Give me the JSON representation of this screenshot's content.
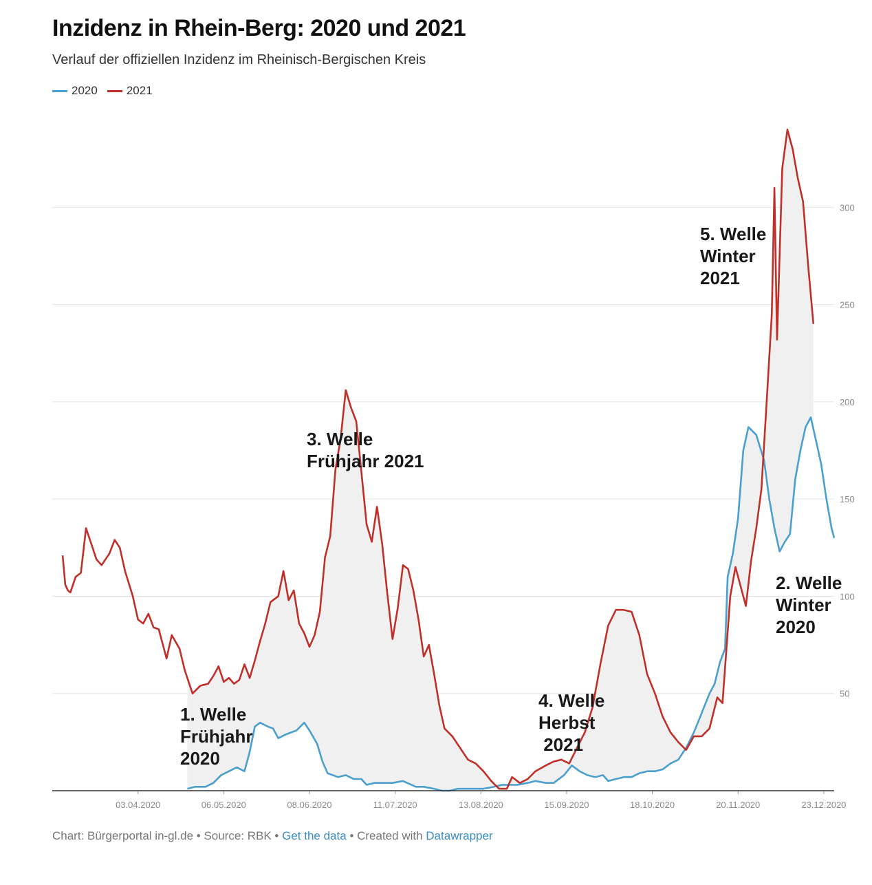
{
  "title": "Inzidenz in Rhein-Berg: 2020 und 2021",
  "subtitle": "Verlauf der offiziellen Inzidenz im Rheinisch-Bergischen Kreis",
  "legend": [
    {
      "label": "2020",
      "color": "#4b9fcd"
    },
    {
      "label": "2021",
      "color": "#c0302a"
    }
  ],
  "footer": {
    "prefix": "Chart: Bürgerportal in-gl.de • Source: RBK •",
    "get_data": "Get the data",
    "middle": "• Created with",
    "datawrapper": "Datawrapper"
  },
  "chart_data": {
    "type": "line",
    "title": "Inzidenz in Rhein-Berg: 2020 und 2021",
    "subtitle": "Verlauf der offiziellen Inzidenz im Rheinisch-Bergischen Kreis",
    "xlabel": "",
    "ylabel": "",
    "ylim": [
      0,
      350
    ],
    "y_ticks": [
      50,
      100,
      150,
      200,
      250,
      300
    ],
    "y_axis_position": "right",
    "x_range": [
      "2020-03-01",
      "2020-12-27"
    ],
    "x_ticks": [
      "03.04.2020",
      "06.05.2020",
      "08.06.2020",
      "11.07.2020",
      "13.08.2020",
      "15.09.2020",
      "18.10.2020",
      "20.11.2020",
      "23.12.2020"
    ],
    "grid": "horizontal",
    "legend_position": "top-left",
    "fill_between_series": true,
    "series": [
      {
        "name": "2020",
        "color": "#4b9fcd",
        "points": [
          [
            "2020-04-22",
            1
          ],
          [
            "2020-04-25",
            2
          ],
          [
            "2020-04-29",
            2
          ],
          [
            "2020-05-02",
            4
          ],
          [
            "2020-05-05",
            8
          ],
          [
            "2020-05-08",
            10
          ],
          [
            "2020-05-11",
            12
          ],
          [
            "2020-05-14",
            10
          ],
          [
            "2020-05-16",
            20
          ],
          [
            "2020-05-18",
            33
          ],
          [
            "2020-05-20",
            35
          ],
          [
            "2020-05-23",
            33
          ],
          [
            "2020-05-25",
            32
          ],
          [
            "2020-05-27",
            27
          ],
          [
            "2020-05-30",
            29
          ],
          [
            "2020-06-03",
            31
          ],
          [
            "2020-06-06",
            35
          ],
          [
            "2020-06-08",
            31
          ],
          [
            "2020-06-11",
            24
          ],
          [
            "2020-06-13",
            15
          ],
          [
            "2020-06-15",
            9
          ],
          [
            "2020-06-19",
            7
          ],
          [
            "2020-06-22",
            8
          ],
          [
            "2020-06-25",
            6
          ],
          [
            "2020-06-28",
            6
          ],
          [
            "2020-06-30",
            3
          ],
          [
            "2020-07-03",
            4
          ],
          [
            "2020-07-06",
            4
          ],
          [
            "2020-07-10",
            4
          ],
          [
            "2020-07-14",
            5
          ],
          [
            "2020-07-19",
            2
          ],
          [
            "2020-07-22",
            2
          ],
          [
            "2020-07-26",
            1
          ],
          [
            "2020-07-29",
            0
          ],
          [
            "2020-08-01",
            0
          ],
          [
            "2020-08-04",
            1
          ],
          [
            "2020-08-08",
            1
          ],
          [
            "2020-08-11",
            1
          ],
          [
            "2020-08-14",
            1
          ],
          [
            "2020-08-18",
            2
          ],
          [
            "2020-08-21",
            3
          ],
          [
            "2020-08-24",
            3
          ],
          [
            "2020-08-27",
            3
          ],
          [
            "2020-08-31",
            4
          ],
          [
            "2020-09-03",
            5
          ],
          [
            "2020-09-07",
            4
          ],
          [
            "2020-09-10",
            4
          ],
          [
            "2020-09-14",
            8
          ],
          [
            "2020-09-17",
            13
          ],
          [
            "2020-09-20",
            10
          ],
          [
            "2020-09-23",
            8
          ],
          [
            "2020-09-26",
            7
          ],
          [
            "2020-09-29",
            8
          ],
          [
            "2020-10-01",
            5
          ],
          [
            "2020-10-04",
            6
          ],
          [
            "2020-10-07",
            7
          ],
          [
            "2020-10-10",
            7
          ],
          [
            "2020-10-13",
            9
          ],
          [
            "2020-10-16",
            10
          ],
          [
            "2020-10-19",
            10
          ],
          [
            "2020-10-22",
            11
          ],
          [
            "2020-10-25",
            14
          ],
          [
            "2020-10-28",
            16
          ],
          [
            "2020-10-31",
            22
          ],
          [
            "2020-11-03",
            30
          ],
          [
            "2020-11-06",
            40
          ],
          [
            "2020-11-09",
            50
          ],
          [
            "2020-11-11",
            55
          ],
          [
            "2020-11-13",
            66
          ],
          [
            "2020-11-15",
            73
          ],
          [
            "2020-11-16",
            110
          ],
          [
            "2020-11-18",
            122
          ],
          [
            "2020-11-20",
            140
          ],
          [
            "2020-11-22",
            175
          ],
          [
            "2020-11-24",
            187
          ],
          [
            "2020-11-27",
            183
          ],
          [
            "2020-11-30",
            170
          ],
          [
            "2020-12-02",
            150
          ],
          [
            "2020-12-04",
            135
          ],
          [
            "2020-12-06",
            123
          ],
          [
            "2020-12-08",
            128
          ],
          [
            "2020-12-10",
            132
          ],
          [
            "2020-12-12",
            160
          ],
          [
            "2020-12-14",
            175
          ],
          [
            "2020-12-16",
            187
          ],
          [
            "2020-12-18",
            192
          ],
          [
            "2020-12-20",
            180
          ],
          [
            "2020-12-22",
            168
          ],
          [
            "2020-12-24",
            150
          ],
          [
            "2020-12-26",
            135
          ],
          [
            "2020-12-27",
            130
          ]
        ]
      },
      {
        "name": "2021",
        "color": "#c0302a",
        "points": [
          [
            "2020-03-05",
            121
          ],
          [
            "2020-03-06",
            106
          ],
          [
            "2020-03-07",
            103
          ],
          [
            "2020-03-08",
            102
          ],
          [
            "2020-03-10",
            110
          ],
          [
            "2020-03-12",
            112
          ],
          [
            "2020-03-14",
            135
          ],
          [
            "2020-03-16",
            127
          ],
          [
            "2020-03-18",
            119
          ],
          [
            "2020-03-20",
            116
          ],
          [
            "2020-03-23",
            122
          ],
          [
            "2020-03-25",
            129
          ],
          [
            "2020-03-27",
            125
          ],
          [
            "2020-03-29",
            113
          ],
          [
            "2020-04-01",
            100
          ],
          [
            "2020-04-03",
            88
          ],
          [
            "2020-04-05",
            86
          ],
          [
            "2020-04-07",
            91
          ],
          [
            "2020-04-09",
            84
          ],
          [
            "2020-04-11",
            83
          ],
          [
            "2020-04-14",
            68
          ],
          [
            "2020-04-16",
            80
          ],
          [
            "2020-04-19",
            73
          ],
          [
            "2020-04-21",
            62
          ],
          [
            "2020-04-24",
            50
          ],
          [
            "2020-04-27",
            54
          ],
          [
            "2020-04-30",
            55
          ],
          [
            "2020-05-02",
            59
          ],
          [
            "2020-05-04",
            64
          ],
          [
            "2020-05-06",
            56
          ],
          [
            "2020-05-08",
            58
          ],
          [
            "2020-05-10",
            55
          ],
          [
            "2020-05-12",
            57
          ],
          [
            "2020-05-14",
            65
          ],
          [
            "2020-05-16",
            58
          ],
          [
            "2020-05-18",
            67
          ],
          [
            "2020-05-20",
            77
          ],
          [
            "2020-05-22",
            86
          ],
          [
            "2020-05-24",
            97
          ],
          [
            "2020-05-27",
            100
          ],
          [
            "2020-05-29",
            113
          ],
          [
            "2020-05-31",
            98
          ],
          [
            "2020-06-02",
            103
          ],
          [
            "2020-06-04",
            86
          ],
          [
            "2020-06-06",
            81
          ],
          [
            "2020-06-08",
            74
          ],
          [
            "2020-06-10",
            80
          ],
          [
            "2020-06-12",
            92
          ],
          [
            "2020-06-14",
            120
          ],
          [
            "2020-06-16",
            131
          ],
          [
            "2020-06-18",
            165
          ],
          [
            "2020-06-20",
            181
          ],
          [
            "2020-06-22",
            206
          ],
          [
            "2020-06-24",
            197
          ],
          [
            "2020-06-26",
            190
          ],
          [
            "2020-06-28",
            164
          ],
          [
            "2020-06-30",
            137
          ],
          [
            "2020-07-02",
            128
          ],
          [
            "2020-07-04",
            146
          ],
          [
            "2020-07-06",
            127
          ],
          [
            "2020-07-08",
            101
          ],
          [
            "2020-07-10",
            78
          ],
          [
            "2020-07-12",
            94
          ],
          [
            "2020-07-14",
            116
          ],
          [
            "2020-07-16",
            114
          ],
          [
            "2020-07-18",
            103
          ],
          [
            "2020-07-20",
            88
          ],
          [
            "2020-07-22",
            69
          ],
          [
            "2020-07-24",
            75
          ],
          [
            "2020-07-26",
            60
          ],
          [
            "2020-07-28",
            44
          ],
          [
            "2020-07-30",
            32
          ],
          [
            "2020-08-02",
            28
          ],
          [
            "2020-08-05",
            22
          ],
          [
            "2020-08-08",
            16
          ],
          [
            "2020-08-11",
            14
          ],
          [
            "2020-08-14",
            10
          ],
          [
            "2020-08-17",
            5
          ],
          [
            "2020-08-20",
            1
          ],
          [
            "2020-08-23",
            1
          ],
          [
            "2020-08-25",
            7
          ],
          [
            "2020-08-28",
            4
          ],
          [
            "2020-08-31",
            6
          ],
          [
            "2020-09-03",
            10
          ],
          [
            "2020-09-07",
            13
          ],
          [
            "2020-09-10",
            15
          ],
          [
            "2020-09-13",
            16
          ],
          [
            "2020-09-16",
            14
          ],
          [
            "2020-09-19",
            22
          ],
          [
            "2020-09-22",
            30
          ],
          [
            "2020-09-25",
            43
          ],
          [
            "2020-09-28",
            65
          ],
          [
            "2020-10-01",
            85
          ],
          [
            "2020-10-04",
            93
          ],
          [
            "2020-10-07",
            93
          ],
          [
            "2020-10-10",
            92
          ],
          [
            "2020-10-13",
            80
          ],
          [
            "2020-10-16",
            60
          ],
          [
            "2020-10-19",
            50
          ],
          [
            "2020-10-22",
            38
          ],
          [
            "2020-10-25",
            30
          ],
          [
            "2020-10-28",
            25
          ],
          [
            "2020-10-31",
            21
          ],
          [
            "2020-11-03",
            28
          ],
          [
            "2020-11-06",
            28
          ],
          [
            "2020-11-09",
            32
          ],
          [
            "2020-11-12",
            48
          ],
          [
            "2020-11-14",
            45
          ],
          [
            "2020-11-17",
            100
          ],
          [
            "2020-11-19",
            115
          ],
          [
            "2020-11-21",
            105
          ],
          [
            "2020-11-23",
            95
          ],
          [
            "2020-11-25",
            118
          ],
          [
            "2020-11-27",
            135
          ],
          [
            "2020-11-29",
            155
          ],
          [
            "2020-12-01",
            200
          ],
          [
            "2020-12-03",
            245
          ],
          [
            "2020-12-04",
            310
          ],
          [
            "2020-12-05",
            232
          ],
          [
            "2020-12-07",
            320
          ],
          [
            "2020-12-09",
            340
          ],
          [
            "2020-12-11",
            330
          ],
          [
            "2020-12-13",
            315
          ],
          [
            "2020-12-15",
            303
          ],
          [
            "2020-12-17",
            270
          ],
          [
            "2020-12-19",
            240
          ]
        ]
      }
    ],
    "annotations": [
      {
        "lines": [
          "1. Welle",
          "Frühjahr",
          "2020"
        ]
      },
      {
        "lines": [
          "3. Welle",
          "Frühjahr 2021"
        ]
      },
      {
        "lines": [
          "4. Welle",
          "Herbst",
          " 2021"
        ]
      },
      {
        "lines": [
          "5. Welle",
          "Winter",
          "2021"
        ]
      },
      {
        "lines": [
          "2. Welle",
          "Winter",
          "2020"
        ]
      }
    ]
  }
}
